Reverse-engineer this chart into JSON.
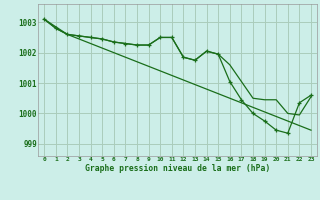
{
  "background_color": "#cceee8",
  "grid_color": "#aaccbb",
  "line_color": "#1a6e1a",
  "title": "Graphe pression niveau de la mer (hPa)",
  "ylim": [
    998.6,
    1003.6
  ],
  "yticks": [
    999,
    1000,
    1001,
    1002,
    1003
  ],
  "xlim": [
    -0.5,
    23.5
  ],
  "xticks": [
    0,
    1,
    2,
    3,
    4,
    5,
    6,
    7,
    8,
    9,
    10,
    11,
    12,
    13,
    14,
    15,
    16,
    17,
    18,
    19,
    20,
    21,
    22,
    23
  ],
  "hours": [
    0,
    1,
    2,
    3,
    4,
    5,
    6,
    7,
    8,
    9,
    10,
    11,
    12,
    13,
    14,
    15,
    16,
    17,
    18,
    19,
    20,
    21,
    22,
    23
  ],
  "line_straight": [
    1003.1,
    1002.85,
    1002.6,
    1002.45,
    1002.3,
    1002.15,
    1002.0,
    1001.85,
    1001.7,
    1001.55,
    1001.4,
    1001.25,
    1001.1,
    1000.95,
    1000.8,
    1000.65,
    1000.5,
    1000.35,
    1000.2,
    1000.05,
    999.9,
    999.75,
    999.6,
    999.45
  ],
  "line_jagged": [
    1003.1,
    1002.8,
    1002.6,
    1002.55,
    1002.5,
    1002.45,
    1002.35,
    1002.3,
    1002.25,
    1002.25,
    1002.5,
    1002.5,
    1001.85,
    1001.75,
    1002.05,
    1001.95,
    1001.6,
    1001.05,
    1000.5,
    1000.45,
    1000.45,
    1000.0,
    999.95,
    1000.55
  ],
  "line_jagged2": [
    1003.1,
    1002.8,
    1002.6,
    1002.55,
    1002.5,
    1002.45,
    1002.35,
    1002.3,
    1002.25,
    1002.25,
    1002.5,
    1002.5,
    1001.85,
    1001.75,
    1002.05,
    1001.95,
    1001.05,
    1000.45,
    1000.0,
    999.75,
    999.45,
    999.35,
    1000.35,
    1000.6
  ]
}
